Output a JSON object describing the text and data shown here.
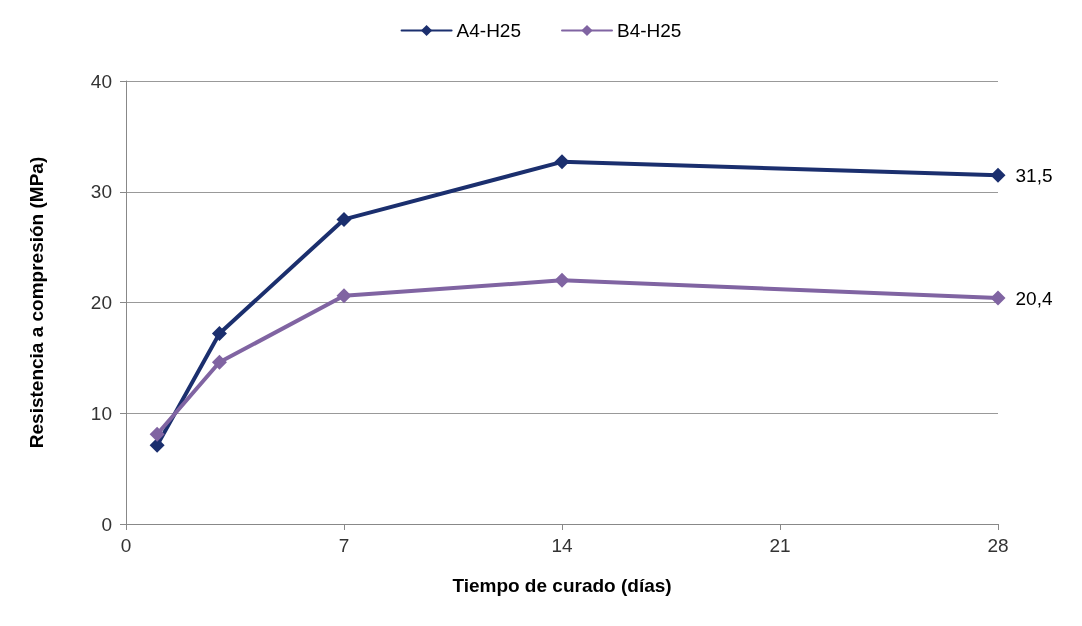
{
  "chart_data": {
    "type": "line",
    "xlabel": "Tiempo de curado (días)",
    "ylabel": "Resistencia a compresión (MPa)",
    "xlim": [
      0,
      28
    ],
    "xticks": [
      0,
      7,
      14,
      21,
      28
    ],
    "ylim": [
      0,
      40
    ],
    "yticks": [
      0,
      10,
      20,
      30,
      40
    ],
    "grid": "y",
    "legend": "top",
    "marker": "diamond",
    "line_style": "solid",
    "series": [
      {
        "name": "A4-H25",
        "color": "#1b2f6e",
        "x": [
          1,
          3,
          7,
          14,
          28
        ],
        "values": [
          7.1,
          17.2,
          27.5,
          32.7,
          31.5
        ],
        "value_labels": [
          null,
          null,
          null,
          null,
          "31,5"
        ]
      },
      {
        "name": "B4-H25",
        "color": "#8064a2",
        "x": [
          1,
          3,
          7,
          14,
          28
        ],
        "values": [
          8.1,
          14.6,
          20.6,
          22.0,
          20.4
        ],
        "value_labels": [
          null,
          null,
          null,
          null,
          "20,4"
        ]
      }
    ]
  }
}
